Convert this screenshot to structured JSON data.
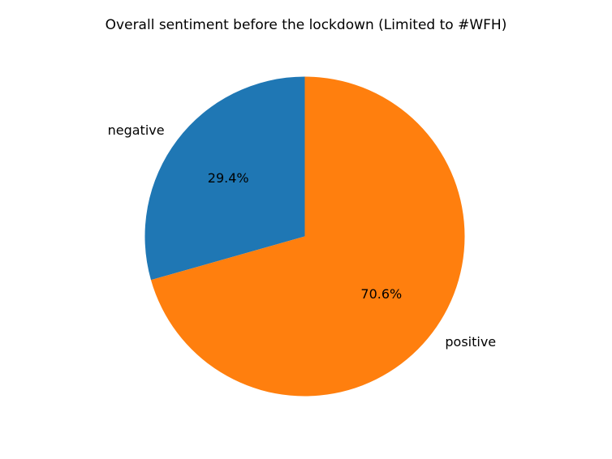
{
  "figure": {
    "background": "#ffffff"
  },
  "chart_data": {
    "type": "pie",
    "title": "Overall sentiment before the lockdown (Limited to #WFH)",
    "categories": [
      "negative",
      "positive"
    ],
    "values": [
      29.4,
      70.6
    ],
    "slices": [
      {
        "label": "negative",
        "value": 29.4,
        "pct_label": "29.4%",
        "color": "#1f77b4"
      },
      {
        "label": "positive",
        "value": 70.6,
        "pct_label": "70.6%",
        "color": "#ff7f0e"
      }
    ],
    "start_angle_deg": 90,
    "direction": "counterclockwise",
    "legend": "none",
    "grid": false,
    "background": "#ffffff",
    "text_color": "#000000"
  }
}
